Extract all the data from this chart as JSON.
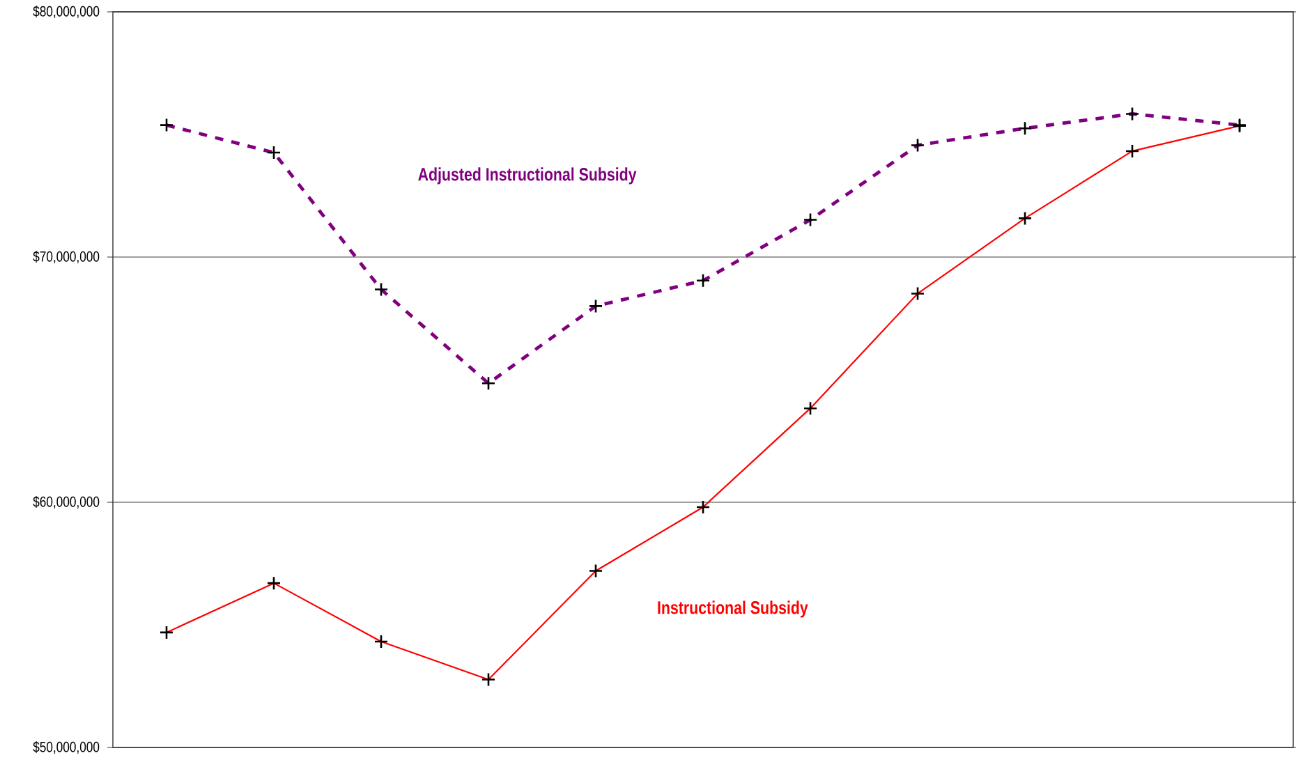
{
  "chart_data": {
    "type": "line",
    "categories": [
      null,
      null,
      null,
      null,
      null,
      null,
      null,
      null,
      null,
      null,
      null
    ],
    "series": [
      {
        "name": "Adjusted Instructional Subsidy",
        "color": "#800080",
        "line_style": "dashed",
        "values": [
          75380000,
          74260000,
          68680000,
          64850000,
          68000000,
          69040000,
          71520000,
          74560000,
          75250000,
          75840000,
          75380000
        ]
      },
      {
        "name": "Instructional Subsidy",
        "color": "#ff0000",
        "line_style": "solid",
        "values": [
          54690000,
          56700000,
          54320000,
          52770000,
          57200000,
          59800000,
          63830000,
          68510000,
          71580000,
          74320000,
          75350000
        ]
      }
    ],
    "ylim": [
      50000000,
      80000000
    ],
    "yticks": [
      {
        "value": 50000000,
        "label": "$50,000,000"
      },
      {
        "value": 60000000,
        "label": "$60,000,000"
      },
      {
        "value": 70000000,
        "label": "$70,000,000"
      },
      {
        "value": 80000000,
        "label": "$80,000,000"
      }
    ],
    "grid": "y",
    "marker": "cross",
    "tick_labels": "y"
  }
}
